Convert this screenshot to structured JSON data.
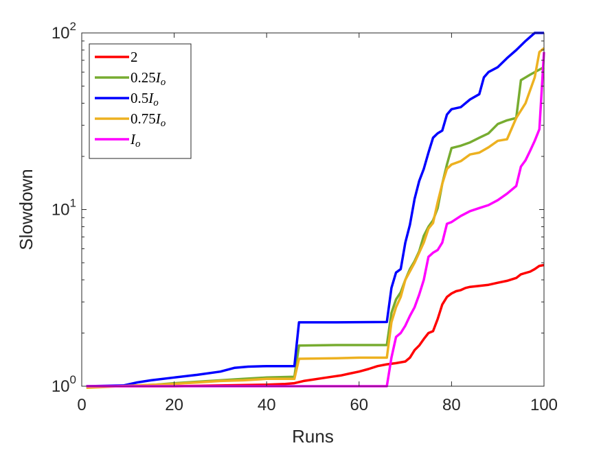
{
  "chart_data": {
    "type": "line",
    "xlabel": "Runs",
    "ylabel": "Slowdown",
    "xlim": [
      0,
      100
    ],
    "ylim": [
      1,
      100
    ],
    "yscale": "log",
    "xticks": [
      0,
      20,
      40,
      60,
      80,
      100
    ],
    "xtick_labels": [
      "0",
      "20",
      "40",
      "60",
      "80",
      "100"
    ],
    "yticks": [
      {
        "value": 1,
        "base": "10",
        "exp": "0"
      },
      {
        "value": 10,
        "base": "10",
        "exp": "1"
      },
      {
        "value": 100,
        "base": "10",
        "exp": "2"
      }
    ],
    "grid": false,
    "legend_position": "top-left",
    "series": [
      {
        "name": "2",
        "legend_parts": [
          {
            "t": "2",
            "i": false
          }
        ],
        "color": "#ff0000",
        "points": [
          [
            1,
            1
          ],
          [
            10,
            1
          ],
          [
            20,
            1
          ],
          [
            30,
            1.01
          ],
          [
            40,
            1.02
          ],
          [
            44,
            1.03
          ],
          [
            46,
            1.04
          ],
          [
            48,
            1.07
          ],
          [
            50,
            1.09
          ],
          [
            52,
            1.11
          ],
          [
            54,
            1.13
          ],
          [
            56,
            1.15
          ],
          [
            58,
            1.18
          ],
          [
            60,
            1.21
          ],
          [
            62,
            1.25
          ],
          [
            64,
            1.3
          ],
          [
            66,
            1.33
          ],
          [
            68,
            1.35
          ],
          [
            70,
            1.38
          ],
          [
            71,
            1.45
          ],
          [
            72,
            1.6
          ],
          [
            73,
            1.7
          ],
          [
            74,
            1.85
          ],
          [
            75,
            2.0
          ],
          [
            76,
            2.05
          ],
          [
            77,
            2.4
          ],
          [
            78,
            2.9
          ],
          [
            79,
            3.2
          ],
          [
            80,
            3.35
          ],
          [
            81,
            3.45
          ],
          [
            82,
            3.5
          ],
          [
            83,
            3.6
          ],
          [
            84,
            3.65
          ],
          [
            86,
            3.7
          ],
          [
            88,
            3.75
          ],
          [
            90,
            3.85
          ],
          [
            92,
            3.95
          ],
          [
            94,
            4.1
          ],
          [
            95,
            4.3
          ],
          [
            97,
            4.45
          ],
          [
            98,
            4.6
          ],
          [
            99,
            4.8
          ],
          [
            100,
            4.85
          ]
        ]
      },
      {
        "name": "0.25I_o",
        "legend_parts": [
          {
            "t": "0.25",
            "i": false
          },
          {
            "t": "I",
            "i": true
          },
          {
            "t": "o",
            "i": true,
            "sub": true
          }
        ],
        "color": "#77ac30",
        "points": [
          [
            1,
            1
          ],
          [
            8,
            1
          ],
          [
            12,
            1.01
          ],
          [
            16,
            1.02
          ],
          [
            20,
            1.04
          ],
          [
            25,
            1.06
          ],
          [
            30,
            1.08
          ],
          [
            35,
            1.1
          ],
          [
            40,
            1.12
          ],
          [
            46,
            1.13
          ],
          [
            47,
            1.7
          ],
          [
            55,
            1.71
          ],
          [
            60,
            1.71
          ],
          [
            66,
            1.71
          ],
          [
            67,
            2.6
          ],
          [
            68,
            3.1
          ],
          [
            69,
            3.4
          ],
          [
            70,
            4.0
          ],
          [
            71,
            4.6
          ],
          [
            72,
            5.1
          ],
          [
            73,
            5.8
          ],
          [
            74,
            7.1
          ],
          [
            75,
            8.0
          ],
          [
            76,
            8.7
          ],
          [
            77,
            10.2
          ],
          [
            78,
            14.0
          ],
          [
            79,
            18.0
          ],
          [
            80,
            22.3
          ],
          [
            82,
            23.0
          ],
          [
            84,
            24.0
          ],
          [
            86,
            25.5
          ],
          [
            88,
            27.0
          ],
          [
            90,
            30.5
          ],
          [
            92,
            32.0
          ],
          [
            94,
            33.0
          ],
          [
            95,
            54.0
          ],
          [
            97,
            58.0
          ],
          [
            99,
            62.0
          ],
          [
            100,
            64.0
          ]
        ]
      },
      {
        "name": "0.5I_o",
        "legend_parts": [
          {
            "t": "0.5",
            "i": false
          },
          {
            "t": "I",
            "i": true
          },
          {
            "t": "o",
            "i": true,
            "sub": true
          }
        ],
        "color": "#0000ff",
        "points": [
          [
            1,
            1
          ],
          [
            9,
            1.01
          ],
          [
            12,
            1.05
          ],
          [
            15,
            1.08
          ],
          [
            20,
            1.12
          ],
          [
            25,
            1.16
          ],
          [
            30,
            1.21
          ],
          [
            33,
            1.27
          ],
          [
            36,
            1.29
          ],
          [
            40,
            1.3
          ],
          [
            46,
            1.3
          ],
          [
            47,
            2.3
          ],
          [
            55,
            2.3
          ],
          [
            66,
            2.31
          ],
          [
            67,
            3.6
          ],
          [
            68,
            4.4
          ],
          [
            69,
            4.6
          ],
          [
            70,
            6.5
          ],
          [
            71,
            8.2
          ],
          [
            72,
            11.5
          ],
          [
            73,
            14.5
          ],
          [
            74,
            17.0
          ],
          [
            75,
            21.0
          ],
          [
            76,
            25.5
          ],
          [
            77,
            27.0
          ],
          [
            78,
            28.0
          ],
          [
            79,
            34.5
          ],
          [
            80,
            37.0
          ],
          [
            82,
            38.0
          ],
          [
            84,
            42.0
          ],
          [
            86,
            45.0
          ],
          [
            87,
            56.0
          ],
          [
            88,
            60.0
          ],
          [
            90,
            64.0
          ],
          [
            92,
            72.0
          ],
          [
            94,
            80.0
          ],
          [
            96,
            90.0
          ],
          [
            98,
            100
          ],
          [
            100,
            100
          ]
        ]
      },
      {
        "name": "0.75I_o",
        "legend_parts": [
          {
            "t": "0.75",
            "i": false
          },
          {
            "t": "I",
            "i": true
          },
          {
            "t": "o",
            "i": true,
            "sub": true
          }
        ],
        "color": "#edb120",
        "points": [
          [
            1,
            0.98
          ],
          [
            5,
            0.99
          ],
          [
            8,
            1
          ],
          [
            12,
            1.01
          ],
          [
            16,
            1.02
          ],
          [
            20,
            1.03
          ],
          [
            25,
            1.05
          ],
          [
            30,
            1.07
          ],
          [
            35,
            1.08
          ],
          [
            40,
            1.1
          ],
          [
            46,
            1.1
          ],
          [
            47,
            1.43
          ],
          [
            55,
            1.44
          ],
          [
            60,
            1.45
          ],
          [
            66,
            1.45
          ],
          [
            67,
            2.3
          ],
          [
            68,
            2.8
          ],
          [
            69,
            3.2
          ],
          [
            70,
            4.0
          ],
          [
            72,
            5.0
          ],
          [
            74,
            6.5
          ],
          [
            75,
            7.8
          ],
          [
            76,
            8.4
          ],
          [
            77,
            11.0
          ],
          [
            78,
            14.0
          ],
          [
            79,
            17.0
          ],
          [
            80,
            18.0
          ],
          [
            82,
            18.8
          ],
          [
            84,
            20.5
          ],
          [
            86,
            21.0
          ],
          [
            88,
            22.5
          ],
          [
            90,
            24.5
          ],
          [
            92,
            25.0
          ],
          [
            94,
            33.0
          ],
          [
            96,
            40.0
          ],
          [
            98,
            56.0
          ],
          [
            99,
            78.0
          ],
          [
            100,
            82.0
          ]
        ]
      },
      {
        "name": "I_o",
        "legend_parts": [
          {
            "t": "I",
            "i": true
          },
          {
            "t": "o",
            "i": true,
            "sub": true
          }
        ],
        "color": "#ff00ff",
        "points": [
          [
            1,
            1
          ],
          [
            66,
            1
          ],
          [
            67,
            1.45
          ],
          [
            68,
            1.9
          ],
          [
            69,
            2.0
          ],
          [
            70,
            2.2
          ],
          [
            71,
            2.5
          ],
          [
            72,
            2.8
          ],
          [
            73,
            3.3
          ],
          [
            74,
            4.0
          ],
          [
            75,
            5.4
          ],
          [
            76,
            5.7
          ],
          [
            77,
            5.9
          ],
          [
            78,
            6.5
          ],
          [
            79,
            8.3
          ],
          [
            80,
            8.5
          ],
          [
            82,
            9.2
          ],
          [
            84,
            9.8
          ],
          [
            86,
            10.2
          ],
          [
            88,
            10.6
          ],
          [
            90,
            11.3
          ],
          [
            92,
            12.3
          ],
          [
            94,
            13.6
          ],
          [
            95,
            17.5
          ],
          [
            96,
            19.0
          ],
          [
            97,
            21.5
          ],
          [
            98,
            24.5
          ],
          [
            99,
            28.5
          ],
          [
            100,
            78.0
          ]
        ]
      }
    ]
  }
}
